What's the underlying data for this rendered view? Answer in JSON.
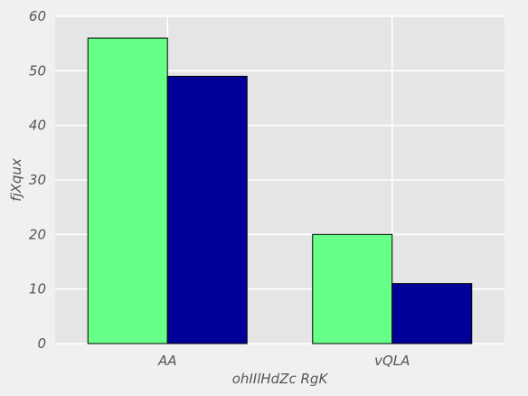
{
  "chart_data": {
    "type": "bar",
    "categories": [
      "AA",
      "vQLA"
    ],
    "series": [
      {
        "values": [
          56,
          20
        ],
        "color": "#66ff88"
      },
      {
        "values": [
          49,
          11
        ],
        "color": "#000099"
      }
    ],
    "title": "",
    "xlabel": "ohIIlHdZc RgK",
    "ylabel": "fjXqux",
    "ylim": [
      0,
      60
    ],
    "yticks": [
      0,
      10,
      20,
      30,
      40,
      50,
      60
    ],
    "grid": true,
    "plot_background": "#e5e5e5",
    "grid_color": "#ffffff"
  }
}
